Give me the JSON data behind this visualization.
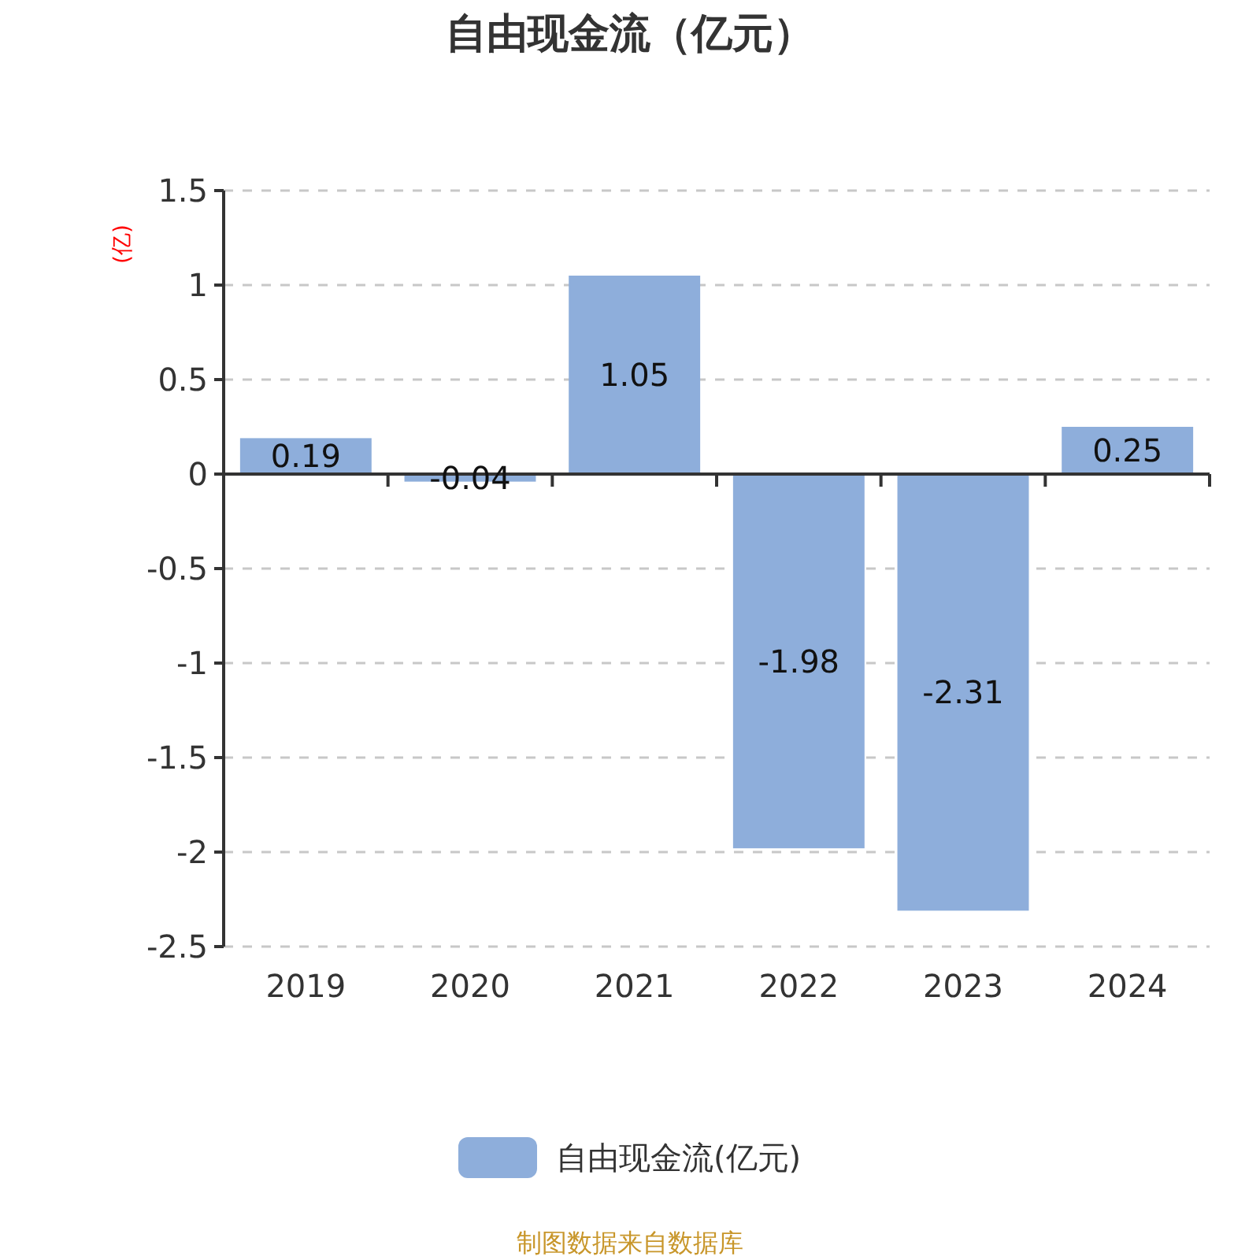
{
  "chart_data": {
    "type": "bar",
    "title": "自由现金流（亿元）",
    "ylabel": "(亿)",
    "categories": [
      "2019",
      "2020",
      "2021",
      "2022",
      "2023",
      "2024"
    ],
    "series": [
      {
        "name": "自由现金流(亿元)",
        "color": "#8eaedb",
        "values": [
          0.19,
          -0.04,
          1.05,
          -1.98,
          -2.31,
          0.25
        ]
      }
    ],
    "ylim": [
      -2.5,
      1.5
    ],
    "yticks": [
      -2.5,
      -2,
      -1.5,
      -1,
      -0.5,
      0,
      0.5,
      1,
      1.5
    ],
    "grid": "y",
    "legend": "bottom",
    "data_labels": true,
    "annotations": [
      "制图数据来自数据库"
    ]
  }
}
